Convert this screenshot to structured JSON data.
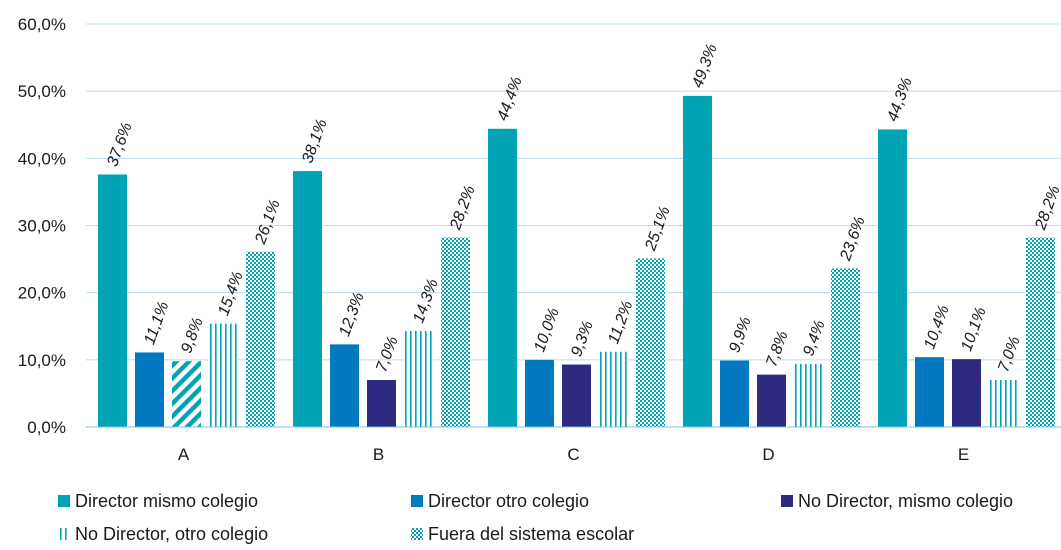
{
  "chart_data": {
    "type": "bar",
    "categories": [
      "A",
      "B",
      "C",
      "D",
      "E"
    ],
    "ylim": [
      0,
      60
    ],
    "yticks": [
      "0,0%",
      "10,0%",
      "20,0%",
      "30,0%",
      "40,0%",
      "50,0%",
      "60,0%"
    ],
    "grid": true,
    "legend_position": "bottom",
    "series": [
      {
        "name": "Director mismo colegio",
        "values": [
          37.6,
          38.1,
          44.4,
          49.3,
          44.3
        ],
        "labels": [
          "37,6%",
          "38,1%",
          "44,4%",
          "49,3%",
          "44,3%"
        ],
        "color": "#00a4b4",
        "pattern": "solid"
      },
      {
        "name": "Director otro colegio",
        "values": [
          11.1,
          12.3,
          10.0,
          9.9,
          10.4
        ],
        "labels": [
          "11,1%",
          "12,3%",
          "10,0%",
          "9,9%",
          "10,4%"
        ],
        "color": "#0079c1",
        "pattern": "solid"
      },
      {
        "name": "No Director, mismo colegio",
        "values": [
          9.8,
          7.0,
          9.3,
          7.8,
          10.1
        ],
        "labels": [
          "9,8%",
          "7,0%",
          "9,3%",
          "7,8%",
          "10,1%"
        ],
        "color": "#2e2a80",
        "pattern": "solid",
        "first_pattern": "diagonal"
      },
      {
        "name": "No Director, otro colegio",
        "values": [
          15.4,
          14.3,
          11.2,
          9.4,
          7.0
        ],
        "labels": [
          "15,4%",
          "14,3%",
          "11,2%",
          "9,4%",
          "7,0%"
        ],
        "color": "#00a4b4",
        "pattern": "vertical"
      },
      {
        "name": "Fuera del sistema escolar",
        "values": [
          26.1,
          28.2,
          25.1,
          23.6,
          28.2
        ],
        "labels": [
          "26,1%",
          "28,2%",
          "25,1%",
          "23,6%",
          "28,2%"
        ],
        "color": "#00a4b4",
        "pattern": "checker"
      }
    ]
  }
}
